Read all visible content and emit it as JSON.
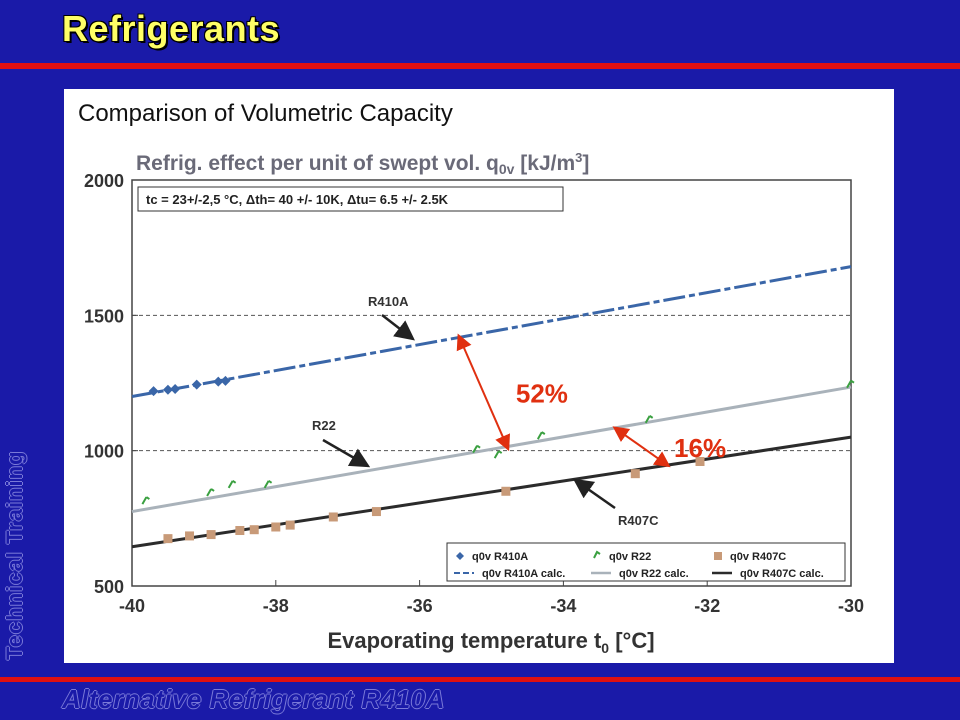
{
  "slide": {
    "title": "Refrigerants",
    "side_label": "Technical Training",
    "footer": "Alternative Refrigerant R410A",
    "caption": "Comparison of Volumetric Capacity"
  },
  "colors": {
    "background": "#1a1aa8",
    "title": "#ffff66",
    "accent_bar": "#e01010",
    "r410a": "#3a66a8",
    "r22": "#a9b2ba",
    "r407c": "#2b2b2b",
    "r407c_points": "#c89a78",
    "r22_points": "#3aa040",
    "annotation": "#e03010"
  },
  "chart_data": {
    "type": "line",
    "title": "Refrig. effect per unit of swept vol. q0v [kJ/m3]",
    "conditions": "tc = 23+/-2,5 °C, Δth= 40 +/- 10K, Δtu= 6.5 +/- 2.5K",
    "xlabel": "Evaporating temperature t0 [°C]",
    "ylabel": "",
    "xlim": [
      -40,
      -30
    ],
    "ylim": [
      500,
      2000
    ],
    "xticks": [
      -40,
      -38,
      -36,
      -34,
      -32,
      -30
    ],
    "xtick_labels": [
      "-40",
      "-38",
      "-36",
      "-34",
      "-32",
      "-30"
    ],
    "yticks": [
      500,
      1000,
      1500,
      2000
    ],
    "ytick_labels": [
      "500",
      "1000",
      "1500",
      "2000"
    ],
    "grid": "dashed horizontal at 1000 and 1500",
    "series": [
      {
        "name": "q0v R410A calc.",
        "style": "dashed",
        "x": [
          -40,
          -30
        ],
        "y": [
          1200,
          1680
        ]
      },
      {
        "name": "q0v R22 calc.",
        "style": "solid",
        "x": [
          -40,
          -30
        ],
        "y": [
          775,
          1235
        ]
      },
      {
        "name": "q0v R407C calc.",
        "style": "solid",
        "x": [
          -40,
          -30
        ],
        "y": [
          645,
          1050
        ]
      }
    ],
    "points": [
      {
        "name": "q0v R410A",
        "marker": "diamond",
        "x": [
          -39.7,
          -39.5,
          -39.4,
          -39.1,
          -38.8,
          -38.7
        ],
        "y": [
          1220,
          1225,
          1228,
          1244,
          1255,
          1258
        ]
      },
      {
        "name": "q0v R22",
        "marker": "tick",
        "x": [
          -39.8,
          -38.9,
          -38.6,
          -38.1,
          -35.2,
          -34.9,
          -34.3,
          -32.8,
          -30.0
        ],
        "y": [
          810,
          840,
          870,
          870,
          1000,
          980,
          1050,
          1110,
          1240
        ]
      },
      {
        "name": "q0v R407C",
        "marker": "square",
        "x": [
          -39.5,
          -39.2,
          -38.9,
          -38.5,
          -38.3,
          -38.0,
          -37.8,
          -37.2,
          -36.6,
          -34.8,
          -33.0,
          -32.1
        ],
        "y": [
          675,
          685,
          690,
          705,
          708,
          718,
          725,
          755,
          775,
          850,
          915,
          960
        ]
      }
    ],
    "legend": {
      "placement": "bottom-right",
      "entries": [
        "q0v R410A",
        "q0v R22",
        "q0v R407C",
        "q0v R410A calc.",
        "q0v R22 calc.",
        "q0v R407C calc."
      ]
    },
    "annotations": [
      {
        "text": "R410A",
        "type": "label"
      },
      {
        "text": "R22",
        "type": "label"
      },
      {
        "text": "R407C",
        "type": "label"
      },
      {
        "text": "52%",
        "type": "difference",
        "from_series": "R410A",
        "to_series": "R22",
        "x": -34.8
      },
      {
        "text": "16%",
        "type": "difference",
        "from_series": "R22",
        "to_series": "R407C",
        "x": -32.6
      }
    ]
  }
}
